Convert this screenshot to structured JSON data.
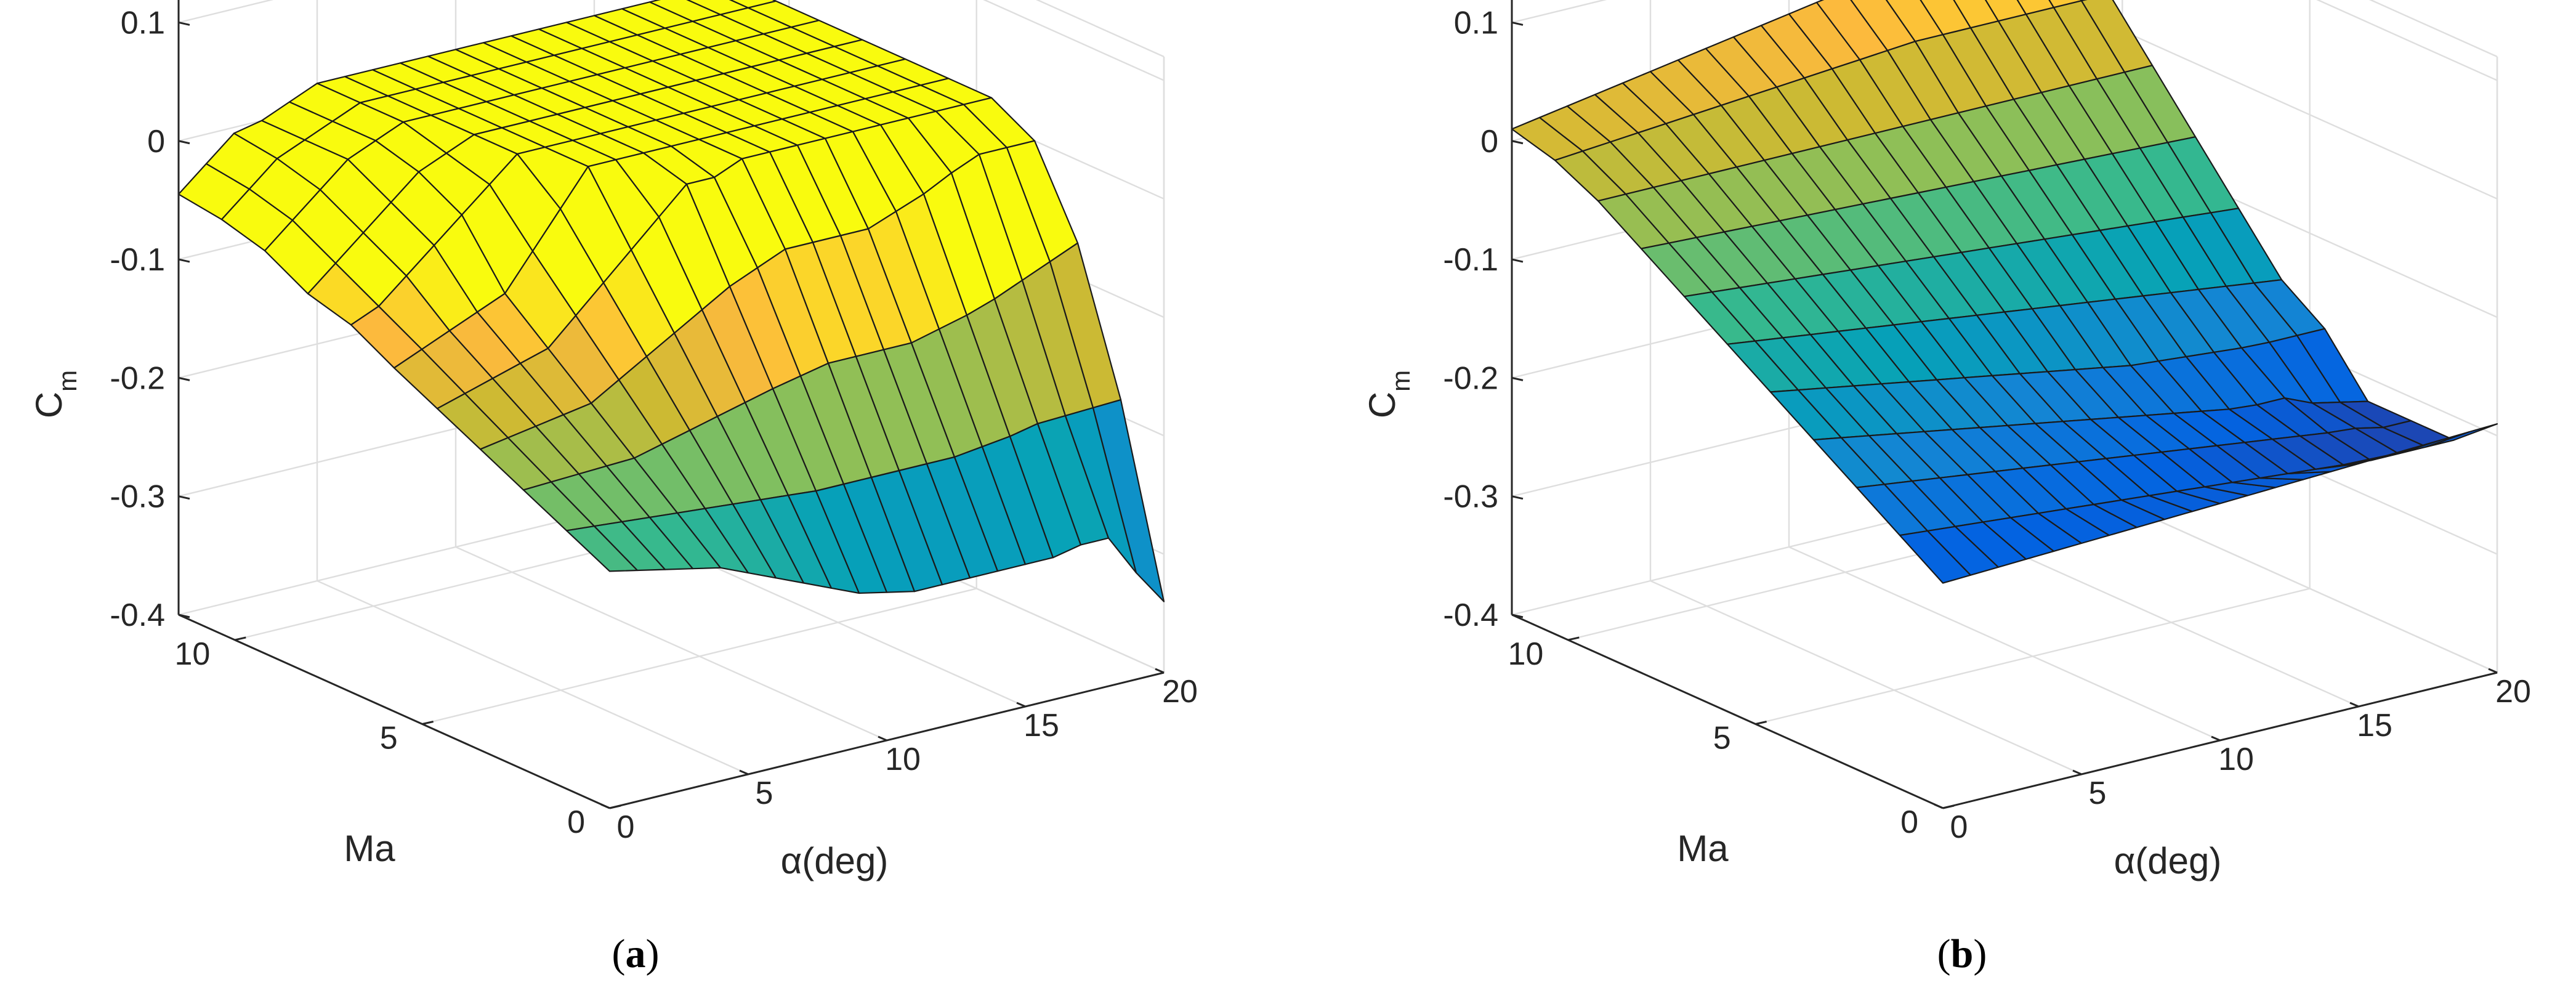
{
  "figure": {
    "panel_labels": [
      {
        "open": "(",
        "letter": "a",
        "close": ")"
      },
      {
        "open": "(",
        "letter": "b",
        "close": ")"
      }
    ]
  },
  "chart_data": [
    {
      "type": "surface",
      "panel": "a",
      "title": "",
      "xlabel": "Ma",
      "ylabel": "α(deg)",
      "zlabel_main": "C",
      "zlabel_sub": "m",
      "xlim": [
        0,
        11.5
      ],
      "ylim": [
        0,
        20
      ],
      "zlim": [
        -0.4,
        0.12
      ],
      "xticks": [
        0,
        5,
        10
      ],
      "xtick_labels": [
        "0",
        "5",
        "10"
      ],
      "yticks": [
        0,
        5,
        10,
        15,
        20
      ],
      "ytick_labels": [
        "0",
        "5",
        "10",
        "15",
        "20"
      ],
      "zticks": [
        -0.4,
        -0.3,
        -0.2,
        -0.1,
        0,
        0.1
      ],
      "ztick_labels": [
        "-0.4",
        "-0.3",
        "-0.2",
        "-0.1",
        "0",
        "0.1"
      ],
      "colormap": "parula",
      "grid": true,
      "ma": [
        0,
        1.15,
        2.3,
        3.45,
        4.6,
        5.75,
        6.9,
        8.05,
        9.2,
        10.35,
        11.5
      ],
      "alpha": [
        0,
        1,
        2,
        3,
        4,
        5,
        6,
        7,
        8,
        9,
        10,
        11,
        12,
        13,
        14,
        15,
        16,
        17,
        18,
        19,
        20
      ],
      "cm": [
        [
          -0.2,
          -0.205,
          -0.21,
          -0.215,
          -0.22,
          -0.23,
          -0.24,
          -0.25,
          -0.26,
          -0.27,
          -0.275,
          -0.28,
          -0.28,
          -0.28,
          -0.28,
          -0.28,
          -0.28,
          -0.275,
          -0.275,
          -0.31,
          -0.34
        ],
        [
          -0.182,
          -0.184,
          -0.186,
          -0.188,
          -0.19,
          -0.192,
          -0.194,
          -0.196,
          -0.198,
          -0.2,
          -0.2,
          -0.2,
          -0.2,
          -0.2,
          -0.2,
          -0.197,
          -0.194,
          -0.189,
          -0.188,
          -0.187,
          -0.186
        ],
        [
          -0.164,
          -0.163,
          -0.162,
          -0.161,
          -0.16,
          -0.154,
          -0.148,
          -0.142,
          -0.136,
          -0.13,
          -0.125,
          -0.12,
          -0.12,
          -0.12,
          -0.12,
          -0.114,
          -0.108,
          -0.1,
          -0.09,
          -0.08,
          -0.07
        ],
        [
          -0.146,
          -0.142,
          -0.138,
          -0.134,
          -0.13,
          -0.116,
          -0.102,
          -0.088,
          -0.074,
          -0.06,
          -0.05,
          -0.04,
          -0.04,
          -0.04,
          -0.04,
          -0.031,
          -0.022,
          -0.01,
          0,
          0,
          0
        ],
        [
          -0.128,
          -0.121,
          -0.114,
          -0.107,
          -0.1,
          -0.078,
          -0.056,
          -0.034,
          -0.012,
          0.01,
          0.01,
          0.02,
          0.02,
          0.02,
          0.02,
          0.02,
          0.02,
          0.02,
          0.02,
          0.02,
          0.02
        ],
        [
          -0.11,
          -0.1,
          -0.09,
          -0.08,
          -0.07,
          -0.04,
          -0.01,
          0.02,
          0.02,
          0.02,
          0.02,
          0.02,
          0.02,
          0.02,
          0.02,
          0.02,
          0.02,
          0.02,
          0.02,
          0.02,
          0.02
        ],
        [
          -0.09,
          -0.08,
          -0.06,
          -0.04,
          -0.02,
          0,
          0.02,
          0.02,
          0.02,
          0.02,
          0.02,
          0.02,
          0.02,
          0.02,
          0.02,
          0.02,
          0.02,
          0.02,
          0.02,
          0.02,
          0.02
        ],
        [
          -0.08,
          -0.06,
          -0.04,
          -0.02,
          0,
          0.01,
          0.02,
          0.02,
          0.02,
          0.02,
          0.02,
          0.02,
          0.02,
          0.02,
          0.02,
          0.02,
          0.02,
          0.02,
          0.02,
          0.02,
          0.02
        ],
        [
          -0.06,
          -0.04,
          -0.02,
          0,
          0.01,
          0.02,
          0.02,
          0.02,
          0.02,
          0.02,
          0.02,
          0.02,
          0.02,
          0.02,
          0.02,
          0.02,
          0.02,
          0.02,
          0.02,
          0.02,
          0.02
        ],
        [
          -0.05,
          -0.03,
          -0.01,
          0,
          0.01,
          0.02,
          0.02,
          0.02,
          0.02,
          0.02,
          0.02,
          0.02,
          0.02,
          0.02,
          0.02,
          0.02,
          0.02,
          0.02,
          0.02,
          0.02,
          0.02
        ],
        [
          -0.045,
          -0.025,
          -0.005,
          0,
          0.01,
          0.02,
          0.02,
          0.02,
          0.02,
          0.02,
          0.02,
          0.02,
          0.02,
          0.02,
          0.02,
          0.02,
          0.02,
          0.02,
          0.02,
          0.02,
          0.02
        ]
      ]
    },
    {
      "type": "surface",
      "panel": "b",
      "title": "",
      "xlabel": "Ma",
      "ylabel": "α(deg)",
      "zlabel_main": "C",
      "zlabel_sub": "m",
      "xlim": [
        0,
        11.5
      ],
      "ylim": [
        0,
        20
      ],
      "zlim": [
        -0.4,
        0.12
      ],
      "xticks": [
        0,
        5,
        10
      ],
      "xtick_labels": [
        "0",
        "5",
        "10"
      ],
      "yticks": [
        0,
        5,
        10,
        15,
        20
      ],
      "ytick_labels": [
        "0",
        "5",
        "10",
        "15",
        "20"
      ],
      "zticks": [
        -0.4,
        -0.3,
        -0.2,
        -0.1,
        0,
        0.1
      ],
      "ztick_labels": [
        "-0.4",
        "-0.3",
        "-0.2",
        "-0.1",
        "0",
        "0.1"
      ],
      "colormap": "parula",
      "grid": true,
      "ma": [
        0,
        1.15,
        2.3,
        3.45,
        4.6,
        5.75,
        6.9,
        8.05,
        9.2,
        10.35,
        11.5
      ],
      "alpha": [
        0,
        1,
        2,
        3,
        4,
        5,
        6,
        7,
        8,
        9,
        10,
        11,
        12,
        13,
        14,
        15,
        16,
        17,
        18,
        19,
        20
      ],
      "cm": [
        [
          -0.21,
          -0.209,
          -0.208,
          -0.207,
          -0.206,
          -0.205,
          -0.204,
          -0.203,
          -0.202,
          -0.201,
          -0.2,
          -0.199,
          -0.198,
          -0.197,
          -0.196,
          -0.195,
          -0.194,
          -0.193,
          -0.192,
          -0.191,
          -0.19
        ],
        [
          -0.186,
          -0.188,
          -0.19,
          -0.192,
          -0.194,
          -0.196,
          -0.198,
          -0.2,
          -0.202,
          -0.204,
          -0.206,
          -0.208,
          -0.21,
          -0.212,
          -0.214,
          -0.216,
          -0.218,
          -0.22,
          -0.22,
          -0.22,
          -0.22
        ],
        [
          -0.162,
          -0.165,
          -0.168,
          -0.171,
          -0.174,
          -0.177,
          -0.18,
          -0.183,
          -0.186,
          -0.189,
          -0.192,
          -0.195,
          -0.198,
          -0.201,
          -0.204,
          -0.207,
          -0.21,
          -0.213,
          -0.215,
          -0.22,
          -0.22
        ],
        [
          -0.138,
          -0.142,
          -0.146,
          -0.15,
          -0.154,
          -0.158,
          -0.162,
          -0.166,
          -0.17,
          -0.174,
          -0.178,
          -0.182,
          -0.186,
          -0.19,
          -0.194,
          -0.198,
          -0.2,
          -0.2,
          -0.21,
          -0.215,
          -0.22
        ],
        [
          -0.114,
          -0.118,
          -0.122,
          -0.126,
          -0.13,
          -0.134,
          -0.138,
          -0.142,
          -0.146,
          -0.15,
          -0.154,
          -0.158,
          -0.162,
          -0.166,
          -0.168,
          -0.17,
          -0.172,
          -0.174,
          -0.175,
          -0.175,
          -0.175
        ],
        [
          -0.09,
          -0.093,
          -0.096,
          -0.099,
          -0.102,
          -0.105,
          -0.108,
          -0.111,
          -0.114,
          -0.117,
          -0.12,
          -0.123,
          -0.126,
          -0.129,
          -0.132,
          -0.135,
          -0.138,
          -0.141,
          -0.144,
          -0.147,
          -0.15
        ],
        [
          -0.066,
          -0.068,
          -0.07,
          -0.072,
          -0.074,
          -0.076,
          -0.078,
          -0.08,
          -0.082,
          -0.084,
          -0.086,
          -0.088,
          -0.09,
          -0.092,
          -0.094,
          -0.096,
          -0.098,
          -0.1,
          -0.102,
          -0.104,
          -0.106
        ],
        [
          -0.042,
          -0.043,
          -0.044,
          -0.045,
          -0.046,
          -0.047,
          -0.048,
          -0.049,
          -0.05,
          -0.051,
          -0.052,
          -0.053,
          -0.054,
          -0.055,
          -0.056,
          -0.057,
          -0.058,
          -0.059,
          -0.06,
          -0.061,
          -0.062
        ],
        [
          -0.018,
          -0.018,
          -0.018,
          -0.018,
          -0.018,
          -0.018,
          -0.018,
          -0.018,
          -0.018,
          -0.018,
          -0.018,
          -0.018,
          -0.018,
          -0.018,
          -0.018,
          -0.018,
          -0.018,
          -0.018,
          -0.018,
          -0.018,
          -0.018
        ],
        [
          0.0,
          0.002,
          0.004,
          0.006,
          0.008,
          0.01,
          0.012,
          0.014,
          0.016,
          0.018,
          0.02,
          0.022,
          0.024,
          0.026,
          0.026,
          0.026,
          0.026,
          0.026,
          0.026,
          0.026,
          0.026
        ],
        [
          0.01,
          0.014,
          0.018,
          0.022,
          0.026,
          0.03,
          0.034,
          0.038,
          0.042,
          0.046,
          0.05,
          0.054,
          0.058,
          0.062,
          0.066,
          0.07,
          0.07,
          0.07,
          0.07,
          0.07,
          0.07
        ]
      ]
    }
  ]
}
